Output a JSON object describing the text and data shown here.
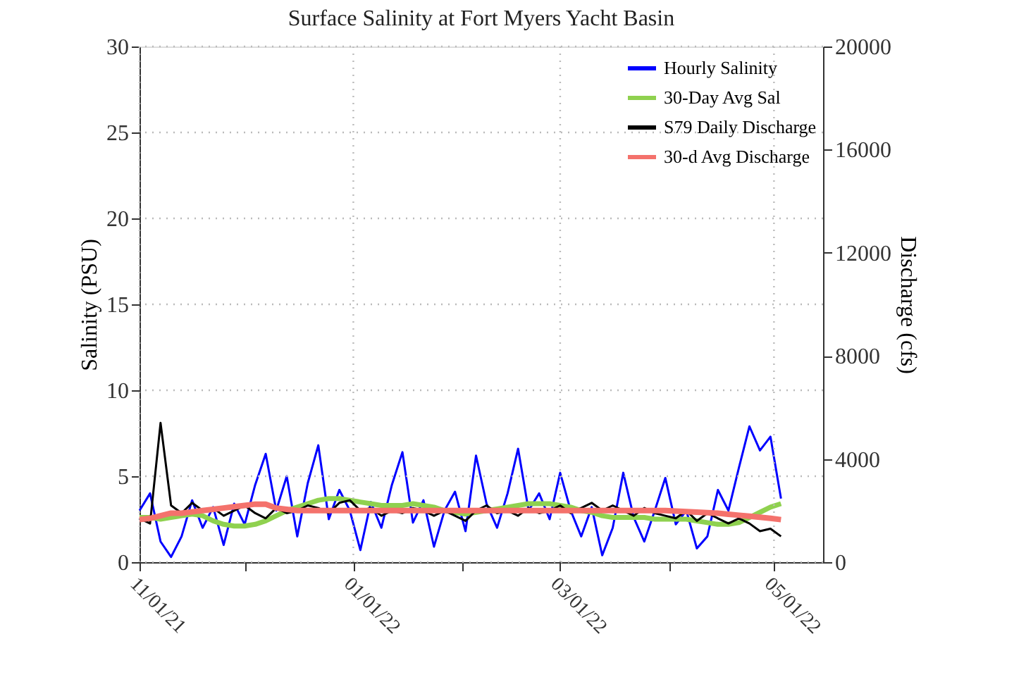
{
  "chart_data": {
    "type": "line",
    "title": "Surface Salinity at Fort Myers Yacht Basin",
    "ylabel": "Salinity (PSU)",
    "y2label": "Discharge (cfs)",
    "x": [
      "2021-11-01",
      "2021-11-04",
      "2021-11-07",
      "2021-11-10",
      "2021-11-13",
      "2021-11-16",
      "2021-11-19",
      "2021-11-22",
      "2021-11-25",
      "2021-11-28",
      "2021-12-01",
      "2021-12-04",
      "2021-12-07",
      "2021-12-10",
      "2021-12-13",
      "2021-12-16",
      "2021-12-19",
      "2021-12-22",
      "2021-12-25",
      "2021-12-28",
      "2021-12-31",
      "2022-01-03",
      "2022-01-06",
      "2022-01-09",
      "2022-01-12",
      "2022-01-15",
      "2022-01-18",
      "2022-01-21",
      "2022-01-24",
      "2022-01-27",
      "2022-01-30",
      "2022-02-02",
      "2022-02-05",
      "2022-02-08",
      "2022-02-11",
      "2022-02-14",
      "2022-02-17",
      "2022-02-20",
      "2022-02-23",
      "2022-02-26",
      "2022-03-01",
      "2022-03-04",
      "2022-03-07",
      "2022-03-10",
      "2022-03-13",
      "2022-03-16",
      "2022-03-19",
      "2022-03-22",
      "2022-03-25",
      "2022-03-28",
      "2022-03-31",
      "2022-04-03",
      "2022-04-06",
      "2022-04-09",
      "2022-04-12",
      "2022-04-15",
      "2022-04-18",
      "2022-04-21",
      "2022-04-24",
      "2022-04-27",
      "2022-04-30",
      "2022-05-03"
    ],
    "series": [
      {
        "name": "Hourly Salinity",
        "color": "#0000ff",
        "values": [
          3.0,
          4.0,
          1.2,
          0.3,
          1.5,
          3.6,
          2.0,
          3.2,
          1.0,
          3.4,
          2.2,
          4.5,
          6.3,
          3.0,
          5.0,
          1.5,
          4.6,
          6.8,
          2.5,
          4.2,
          3.0,
          0.7,
          3.5,
          2.0,
          4.5,
          6.4,
          2.3,
          3.6,
          0.9,
          3.0,
          4.1,
          1.8,
          6.2,
          3.4,
          2.0,
          4.0,
          6.6,
          3.0,
          4.0,
          2.5,
          5.2,
          3.0,
          1.5,
          3.2,
          0.4,
          2.0,
          5.2,
          2.6,
          1.2,
          3.0,
          4.9,
          2.2,
          3.0,
          0.8,
          1.5,
          4.2,
          3.0,
          5.5,
          7.9,
          6.5,
          7.3,
          3.7
        ]
      },
      {
        "name": "30-Day Avg Sal",
        "color": "#8fd14f",
        "values": [
          2.6,
          2.6,
          2.5,
          2.6,
          2.7,
          2.8,
          2.7,
          2.4,
          2.2,
          2.1,
          2.1,
          2.2,
          2.4,
          2.7,
          3.0,
          3.2,
          3.4,
          3.6,
          3.7,
          3.7,
          3.6,
          3.5,
          3.4,
          3.3,
          3.3,
          3.3,
          3.4,
          3.3,
          3.2,
          3.0,
          2.9,
          2.8,
          2.9,
          3.0,
          3.1,
          3.2,
          3.3,
          3.4,
          3.4,
          3.4,
          3.3,
          3.2,
          3.0,
          2.9,
          2.7,
          2.6,
          2.6,
          2.6,
          2.6,
          2.5,
          2.5,
          2.5,
          2.5,
          2.4,
          2.3,
          2.2,
          2.2,
          2.3,
          2.6,
          2.9,
          3.2,
          3.4
        ]
      },
      {
        "name": "S79 Daily Discharge",
        "color": "#000000",
        "axis": "y2",
        "values": [
          1700,
          1500,
          5400,
          2200,
          1900,
          2300,
          2000,
          2100,
          1800,
          2000,
          2200,
          1900,
          1700,
          2100,
          1900,
          2000,
          2200,
          2100,
          1900,
          2300,
          2400,
          2000,
          2100,
          1800,
          2000,
          1900,
          2100,
          2000,
          1800,
          2000,
          1800,
          1600,
          2000,
          2200,
          1900,
          2000,
          1800,
          2100,
          1900,
          2000,
          2200,
          1900,
          2100,
          2300,
          2000,
          2200,
          2000,
          1800,
          2100,
          1900,
          1800,
          1700,
          2000,
          1600,
          1900,
          1700,
          1500,
          1700,
          1500,
          1200,
          1300,
          1000
        ]
      },
      {
        "name": "30-d Avg Discharge",
        "color": "#f4726c",
        "axis": "y2",
        "values": [
          1650,
          1700,
          1800,
          1900,
          1900,
          1950,
          2000,
          2050,
          2100,
          2150,
          2200,
          2250,
          2250,
          2100,
          2050,
          2000,
          2000,
          2000,
          2000,
          2000,
          2000,
          2000,
          2000,
          2000,
          2000,
          2000,
          2000,
          2000,
          2000,
          2000,
          2000,
          2000,
          2000,
          2000,
          2000,
          2000,
          2000,
          2000,
          2000,
          2000,
          2000,
          2000,
          2000,
          2000,
          2000,
          2000,
          2000,
          2000,
          2000,
          2000,
          2000,
          1980,
          1960,
          1940,
          1920,
          1900,
          1860,
          1820,
          1780,
          1740,
          1700,
          1650
        ]
      }
    ],
    "xlim": [
      "2021-11-01",
      "2022-05-15"
    ],
    "xticks": [
      {
        "value": "2021-11-01",
        "label": "11/01/21"
      },
      {
        "value": "2021-12-01",
        "label": null
      },
      {
        "value": "2022-01-01",
        "label": "01/01/22"
      },
      {
        "value": "2022-02-01",
        "label": null
      },
      {
        "value": "2022-03-01",
        "label": "03/01/22"
      },
      {
        "value": "2022-04-01",
        "label": null
      },
      {
        "value": "2022-05-01",
        "label": "05/01/22"
      }
    ],
    "ylim": [
      0,
      30
    ],
    "yticks": [
      0,
      5,
      10,
      15,
      20,
      25,
      30
    ],
    "y2lim": [
      0,
      20000
    ],
    "y2ticks": [
      0,
      4000,
      8000,
      12000,
      16000,
      20000
    ],
    "grid": true,
    "legend": "top right",
    "line_style": "solid",
    "marker": "none"
  }
}
